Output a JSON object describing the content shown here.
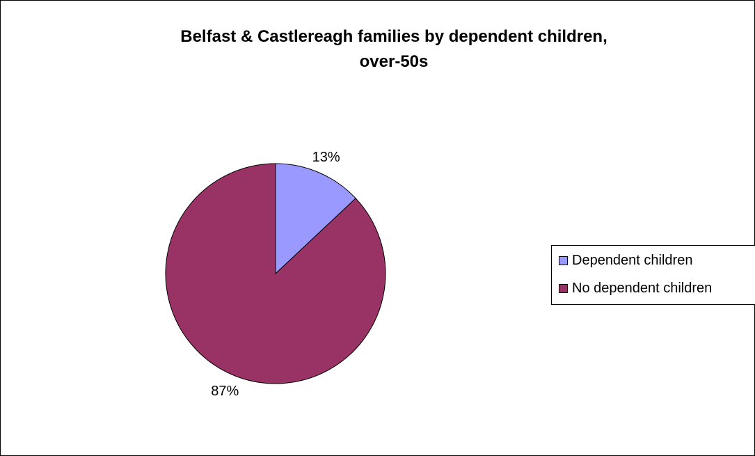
{
  "chart_data": {
    "type": "pie",
    "title": [
      "Belfast & Castlereagh families by dependent children,",
      "over-50s"
    ],
    "slices": [
      {
        "label": "Dependent children",
        "value": 13,
        "display": "13%",
        "color": "#9999ff"
      },
      {
        "label": "No dependent children",
        "value": 87,
        "display": "87%",
        "color": "#993366"
      }
    ],
    "legend": {
      "placement": "right"
    }
  }
}
